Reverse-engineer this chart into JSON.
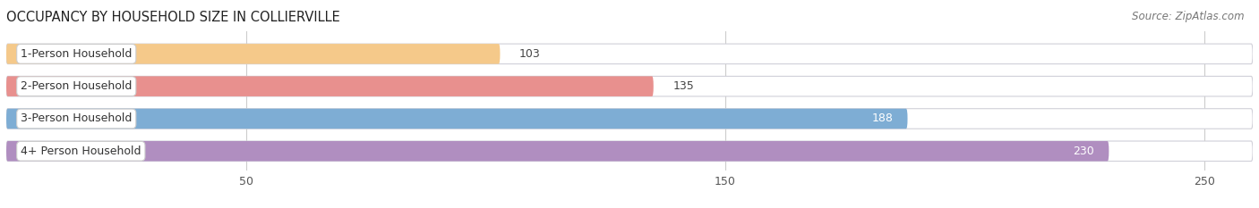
{
  "title": "OCCUPANCY BY HOUSEHOLD SIZE IN COLLIERVILLE",
  "source": "Source: ZipAtlas.com",
  "categories": [
    "1-Person Household",
    "2-Person Household",
    "3-Person Household",
    "4+ Person Household"
  ],
  "values": [
    103,
    135,
    188,
    230
  ],
  "bar_colors": [
    "#f5c98a",
    "#e8908e",
    "#7eadd4",
    "#b08ec0"
  ],
  "bar_bg_color": "#e8e8ec",
  "fig_bg_color": "#ffffff",
  "xlim": [
    0,
    260
  ],
  "xticks": [
    50,
    150,
    250
  ],
  "title_fontsize": 10.5,
  "source_fontsize": 8.5,
  "bar_label_fontsize": 9,
  "cat_label_fontsize": 9
}
